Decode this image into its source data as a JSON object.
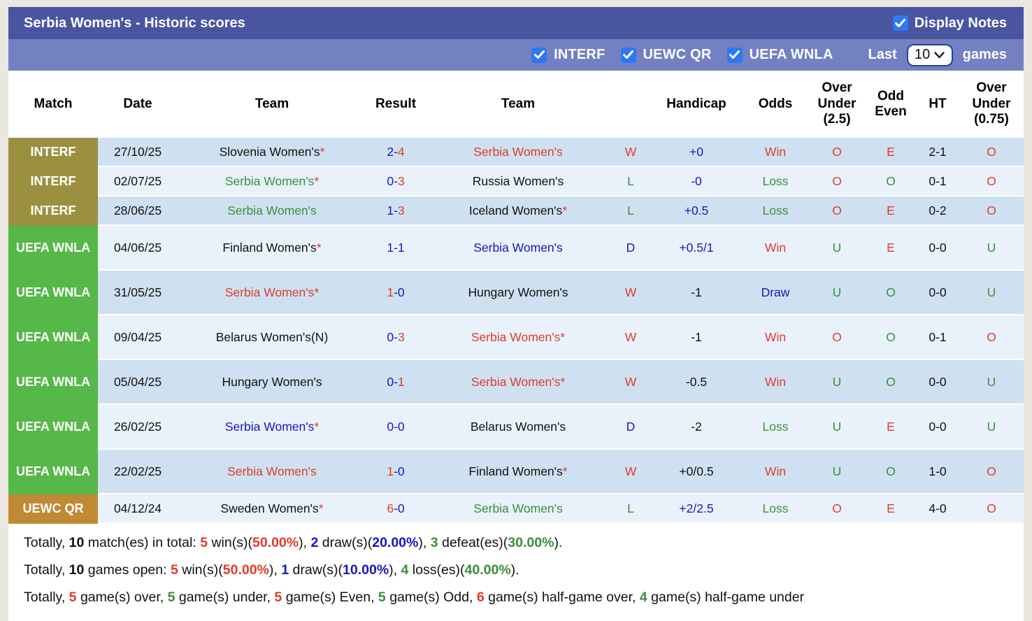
{
  "title_bar": {
    "title": "Serbia Women's - Historic scores",
    "display_notes_label": "Display Notes",
    "display_notes_checked": true
  },
  "filter_bar": {
    "filters": [
      {
        "label": "INTERF",
        "checked": true
      },
      {
        "label": "UEWC QR",
        "checked": true
      },
      {
        "label": "UEFA WNLA",
        "checked": true
      }
    ],
    "last_label": "Last",
    "games_count": "10",
    "games_label": "games"
  },
  "colors": {
    "title_bar_bg": "#4a55a0",
    "filter_bar_bg": "#7380c2",
    "checkbox_blue": "#2e78f2",
    "row_dark": "#cfe1f0",
    "row_light": "#e9f2fa",
    "text_red": "#e03b2e",
    "text_green": "#3a8e38",
    "text_blue": "#1717bf",
    "badge_interf": "#9a9040",
    "badge_uefa_wnla": "#55b848",
    "badge_uewc_qr": "#c08a35"
  },
  "table": {
    "columns": [
      {
        "label": "Match"
      },
      {
        "label": "Date"
      },
      {
        "label": "Team"
      },
      {
        "label": "Result"
      },
      {
        "label": "Team"
      },
      {
        "label": ""
      },
      {
        "label": "Handicap"
      },
      {
        "label": "Odds"
      },
      {
        "label": "Over\nUnder\n(2.5)"
      },
      {
        "label": "Odd\nEven"
      },
      {
        "label": "HT"
      },
      {
        "label": "Over\nUnder\n(0.75)"
      }
    ],
    "competition_colors": {
      "INTERF": "#9a9040",
      "UEFA WNLA": "#55b848",
      "UEWC QR": "#c08a35"
    },
    "rows": [
      {
        "competition": "INTERF",
        "date": "27/10/25",
        "home": {
          "name": "Slovenia Women's",
          "star": true,
          "color": "black"
        },
        "score": {
          "home": "2",
          "away": "4",
          "home_color": "blue",
          "away_color": "red"
        },
        "away": {
          "name": "Serbia Women's",
          "star": false,
          "color": "red"
        },
        "wld": {
          "text": "W",
          "color": "red"
        },
        "handicap": {
          "text": "+0",
          "color": "blue"
        },
        "odds": {
          "text": "Win",
          "color": "red"
        },
        "ou25": {
          "text": "O",
          "color": "red"
        },
        "oddeven": {
          "text": "E",
          "color": "red"
        },
        "ht": "2-1",
        "ou075": {
          "text": "O",
          "color": "red"
        }
      },
      {
        "competition": "INTERF",
        "date": "02/07/25",
        "home": {
          "name": "Serbia Women's",
          "star": true,
          "color": "green"
        },
        "score": {
          "home": "0",
          "away": "3",
          "home_color": "blue",
          "away_color": "red"
        },
        "away": {
          "name": "Russia Women's",
          "star": false,
          "color": "black"
        },
        "wld": {
          "text": "L",
          "color": "green"
        },
        "handicap": {
          "text": "-0",
          "color": "blue"
        },
        "odds": {
          "text": "Loss",
          "color": "green"
        },
        "ou25": {
          "text": "O",
          "color": "red"
        },
        "oddeven": {
          "text": "O",
          "color": "green"
        },
        "ht": "0-1",
        "ou075": {
          "text": "O",
          "color": "red"
        }
      },
      {
        "competition": "INTERF",
        "date": "28/06/25",
        "home": {
          "name": "Serbia Women's",
          "star": false,
          "color": "green"
        },
        "score": {
          "home": "1",
          "away": "3",
          "home_color": "blue",
          "away_color": "red"
        },
        "away": {
          "name": "Iceland Women's",
          "star": true,
          "color": "black"
        },
        "wld": {
          "text": "L",
          "color": "green"
        },
        "handicap": {
          "text": "+0.5",
          "color": "blue"
        },
        "odds": {
          "text": "Loss",
          "color": "green"
        },
        "ou25": {
          "text": "O",
          "color": "red"
        },
        "oddeven": {
          "text": "E",
          "color": "red"
        },
        "ht": "0-2",
        "ou075": {
          "text": "O",
          "color": "red"
        }
      },
      {
        "competition": "UEFA WNLA",
        "date": "04/06/25",
        "home": {
          "name": "Finland Women's",
          "star": true,
          "color": "black"
        },
        "score": {
          "home": "1",
          "away": "1",
          "home_color": "blue",
          "away_color": "blue"
        },
        "away": {
          "name": "Serbia Women's",
          "star": false,
          "color": "blue"
        },
        "wld": {
          "text": "D",
          "color": "blue"
        },
        "handicap": {
          "text": "+0.5/1",
          "color": "blue"
        },
        "odds": {
          "text": "Win",
          "color": "red"
        },
        "ou25": {
          "text": "U",
          "color": "green"
        },
        "oddeven": {
          "text": "E",
          "color": "red"
        },
        "ht": "0-0",
        "ou075": {
          "text": "U",
          "color": "green"
        }
      },
      {
        "competition": "UEFA WNLA",
        "date": "31/05/25",
        "home": {
          "name": "Serbia Women's",
          "star": true,
          "color": "red"
        },
        "score": {
          "home": "1",
          "away": "0",
          "home_color": "red",
          "away_color": "blue"
        },
        "away": {
          "name": "Hungary Women's",
          "star": false,
          "color": "black"
        },
        "wld": {
          "text": "W",
          "color": "red"
        },
        "handicap": {
          "text": "-1",
          "color": "black"
        },
        "odds": {
          "text": "Draw",
          "color": "blue"
        },
        "ou25": {
          "text": "U",
          "color": "green"
        },
        "oddeven": {
          "text": "O",
          "color": "green"
        },
        "ht": "0-0",
        "ou075": {
          "text": "U",
          "color": "green"
        }
      },
      {
        "competition": "UEFA WNLA",
        "date": "09/04/25",
        "home": {
          "name": "Belarus Women's(N)",
          "star": false,
          "color": "black"
        },
        "score": {
          "home": "0",
          "away": "3",
          "home_color": "blue",
          "away_color": "red"
        },
        "away": {
          "name": "Serbia Women's",
          "star": true,
          "color": "red"
        },
        "wld": {
          "text": "W",
          "color": "red"
        },
        "handicap": {
          "text": "-1",
          "color": "black"
        },
        "odds": {
          "text": "Win",
          "color": "red"
        },
        "ou25": {
          "text": "O",
          "color": "red"
        },
        "oddeven": {
          "text": "O",
          "color": "green"
        },
        "ht": "0-1",
        "ou075": {
          "text": "O",
          "color": "red"
        }
      },
      {
        "competition": "UEFA WNLA",
        "date": "05/04/25",
        "home": {
          "name": "Hungary Women's",
          "star": false,
          "color": "black"
        },
        "score": {
          "home": "0",
          "away": "1",
          "home_color": "blue",
          "away_color": "red"
        },
        "away": {
          "name": "Serbia Women's",
          "star": true,
          "color": "red"
        },
        "wld": {
          "text": "W",
          "color": "red"
        },
        "handicap": {
          "text": "-0.5",
          "color": "black"
        },
        "odds": {
          "text": "Win",
          "color": "red"
        },
        "ou25": {
          "text": "U",
          "color": "green"
        },
        "oddeven": {
          "text": "O",
          "color": "green"
        },
        "ht": "0-0",
        "ou075": {
          "text": "U",
          "color": "green"
        }
      },
      {
        "competition": "UEFA WNLA",
        "date": "26/02/25",
        "home": {
          "name": "Serbia Women's",
          "star": true,
          "color": "blue"
        },
        "score": {
          "home": "0",
          "away": "0",
          "home_color": "blue",
          "away_color": "blue"
        },
        "away": {
          "name": "Belarus Women's",
          "star": false,
          "color": "black"
        },
        "wld": {
          "text": "D",
          "color": "blue"
        },
        "handicap": {
          "text": "-2",
          "color": "black"
        },
        "odds": {
          "text": "Loss",
          "color": "green"
        },
        "ou25": {
          "text": "U",
          "color": "green"
        },
        "oddeven": {
          "text": "E",
          "color": "red"
        },
        "ht": "0-0",
        "ou075": {
          "text": "U",
          "color": "green"
        }
      },
      {
        "competition": "UEFA WNLA",
        "date": "22/02/25",
        "home": {
          "name": "Serbia Women's",
          "star": false,
          "color": "red"
        },
        "score": {
          "home": "1",
          "away": "0",
          "home_color": "red",
          "away_color": "blue"
        },
        "away": {
          "name": "Finland Women's",
          "star": true,
          "color": "black"
        },
        "wld": {
          "text": "W",
          "color": "red"
        },
        "handicap": {
          "text": "+0/0.5",
          "color": "black"
        },
        "odds": {
          "text": "Win",
          "color": "red"
        },
        "ou25": {
          "text": "U",
          "color": "green"
        },
        "oddeven": {
          "text": "O",
          "color": "green"
        },
        "ht": "1-0",
        "ou075": {
          "text": "O",
          "color": "red"
        }
      },
      {
        "competition": "UEWC QR",
        "date": "04/12/24",
        "home": {
          "name": "Sweden Women's",
          "star": true,
          "color": "black"
        },
        "score": {
          "home": "6",
          "away": "0",
          "home_color": "red",
          "away_color": "blue"
        },
        "away": {
          "name": "Serbia Women's",
          "star": false,
          "color": "green"
        },
        "wld": {
          "text": "L",
          "color": "green"
        },
        "handicap": {
          "text": "+2/2.5",
          "color": "blue"
        },
        "odds": {
          "text": "Loss",
          "color": "green"
        },
        "ou25": {
          "text": "O",
          "color": "red"
        },
        "oddeven": {
          "text": "E",
          "color": "red"
        },
        "ht": "4-0",
        "ou075": {
          "text": "O",
          "color": "red"
        }
      }
    ]
  },
  "footer": {
    "lines": [
      [
        {
          "text": "Totally, "
        },
        {
          "text": "10",
          "bold": true,
          "color": "black"
        },
        {
          "text": " match(es) in total: "
        },
        {
          "text": "5",
          "bold": true,
          "color": "red"
        },
        {
          "text": " win(s)("
        },
        {
          "text": "50.00%",
          "bold": true,
          "color": "red"
        },
        {
          "text": "), "
        },
        {
          "text": "2",
          "bold": true,
          "color": "blue"
        },
        {
          "text": " draw(s)("
        },
        {
          "text": "20.00%",
          "bold": true,
          "color": "blue"
        },
        {
          "text": "), "
        },
        {
          "text": "3",
          "bold": true,
          "color": "green"
        },
        {
          "text": " defeat(es)("
        },
        {
          "text": "30.00%",
          "bold": true,
          "color": "green"
        },
        {
          "text": ")."
        }
      ],
      [
        {
          "text": "Totally, "
        },
        {
          "text": "10",
          "bold": true,
          "color": "black"
        },
        {
          "text": " games open: "
        },
        {
          "text": "5",
          "bold": true,
          "color": "red"
        },
        {
          "text": " win(s)("
        },
        {
          "text": "50.00%",
          "bold": true,
          "color": "red"
        },
        {
          "text": "), "
        },
        {
          "text": "1",
          "bold": true,
          "color": "blue"
        },
        {
          "text": " draw(s)("
        },
        {
          "text": "10.00%",
          "bold": true,
          "color": "blue"
        },
        {
          "text": "), "
        },
        {
          "text": "4",
          "bold": true,
          "color": "green"
        },
        {
          "text": " loss(es)("
        },
        {
          "text": "40.00%",
          "bold": true,
          "color": "green"
        },
        {
          "text": ")."
        }
      ],
      [
        {
          "text": "Totally, "
        },
        {
          "text": "5",
          "bold": true,
          "color": "red"
        },
        {
          "text": " game(s) over, "
        },
        {
          "text": "5",
          "bold": true,
          "color": "green"
        },
        {
          "text": " game(s) under, "
        },
        {
          "text": "5",
          "bold": true,
          "color": "red"
        },
        {
          "text": " game(s) Even, "
        },
        {
          "text": "5",
          "bold": true,
          "color": "green"
        },
        {
          "text": " game(s) Odd, "
        },
        {
          "text": "6",
          "bold": true,
          "color": "red"
        },
        {
          "text": " game(s) half-game over, "
        },
        {
          "text": "4",
          "bold": true,
          "color": "green"
        },
        {
          "text": " game(s) half-game under"
        }
      ]
    ]
  }
}
